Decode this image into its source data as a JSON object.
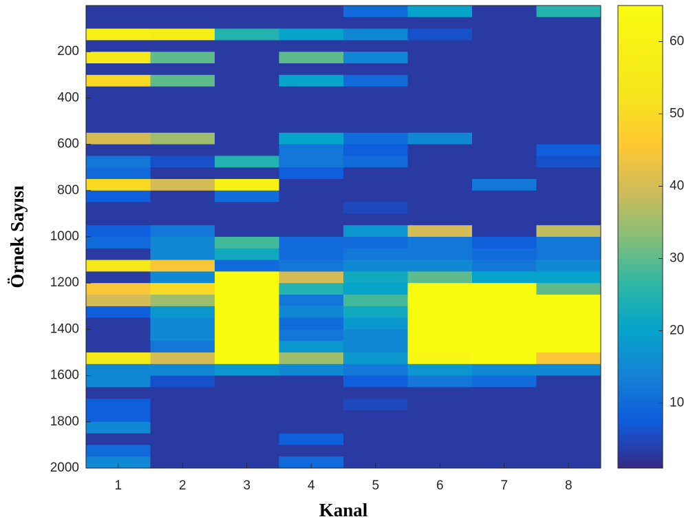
{
  "chart_data": {
    "type": "heatmap",
    "xlabel": "Kanal",
    "ylabel": "Örnek Sayısı",
    "categories": [
      "1",
      "2",
      "3",
      "4",
      "5",
      "6",
      "7",
      "8"
    ],
    "y_bins": [
      0,
      50,
      100,
      150,
      200,
      250,
      300,
      350,
      400,
      450,
      500,
      550,
      600,
      650,
      700,
      750,
      800,
      850,
      900,
      950,
      1000,
      1050,
      1100,
      1150,
      1200,
      1250,
      1300,
      1350,
      1400,
      1450,
      1500,
      1550,
      1600,
      1650,
      1700,
      1750,
      1800,
      1850,
      1900,
      1950,
      2000
    ],
    "ylim": [
      0,
      2000
    ],
    "y_reversed": true,
    "yticks": [
      200,
      400,
      600,
      800,
      1000,
      1200,
      1400,
      1600,
      1800,
      2000
    ],
    "colormap": "parula",
    "clim": [
      1,
      65
    ],
    "cticks": [
      10,
      20,
      30,
      40,
      50,
      60
    ],
    "values": [
      [
        3,
        3,
        60,
        3,
        55,
        3,
        50,
        3,
        3,
        3,
        3,
        40,
        3,
        12,
        10,
        50,
        8,
        3,
        3,
        8,
        10,
        3,
        55,
        3,
        45,
        40,
        8,
        3,
        3,
        3,
        55,
        15,
        15,
        3,
        8,
        8,
        15,
        3,
        10,
        15
      ],
      [
        3,
        3,
        58,
        3,
        30,
        3,
        30,
        3,
        3,
        3,
        3,
        35,
        3,
        6,
        3,
        40,
        3,
        3,
        3,
        12,
        15,
        15,
        45,
        15,
        50,
        35,
        18,
        15,
        15,
        12,
        40,
        15,
        6,
        3,
        3,
        3,
        3,
        3,
        3,
        3
      ],
      [
        3,
        3,
        25,
        3,
        3,
        3,
        3,
        3,
        3,
        3,
        3,
        3,
        3,
        25,
        3,
        60,
        10,
        3,
        3,
        3,
        28,
        22,
        10,
        65,
        65,
        65,
        65,
        65,
        65,
        65,
        65,
        18,
        3,
        3,
        3,
        3,
        3,
        3,
        3,
        3
      ],
      [
        3,
        3,
        20,
        3,
        30,
        3,
        20,
        3,
        3,
        3,
        3,
        20,
        12,
        12,
        8,
        3,
        3,
        3,
        3,
        3,
        10,
        10,
        12,
        40,
        25,
        12,
        15,
        10,
        12,
        18,
        35,
        15,
        3,
        3,
        3,
        3,
        3,
        8,
        3,
        10
      ],
      [
        10,
        3,
        15,
        3,
        15,
        3,
        10,
        3,
        3,
        3,
        3,
        10,
        8,
        10,
        3,
        3,
        3,
        5,
        3,
        18,
        10,
        12,
        15,
        22,
        20,
        28,
        22,
        18,
        15,
        15,
        18,
        12,
        8,
        3,
        5,
        3,
        3,
        3,
        3,
        3
      ],
      [
        20,
        3,
        6,
        3,
        3,
        3,
        3,
        3,
        3,
        3,
        3,
        15,
        3,
        3,
        3,
        3,
        3,
        3,
        3,
        40,
        12,
        12,
        15,
        30,
        65,
        65,
        65,
        65,
        65,
        65,
        62,
        18,
        12,
        3,
        3,
        3,
        3,
        3,
        3,
        3
      ],
      [
        3,
        3,
        3,
        3,
        3,
        3,
        3,
        3,
        3,
        3,
        3,
        3,
        3,
        3,
        3,
        12,
        3,
        3,
        3,
        3,
        8,
        10,
        12,
        20,
        65,
        65,
        65,
        65,
        65,
        65,
        65,
        15,
        10,
        3,
        3,
        3,
        3,
        3,
        3,
        3
      ],
      [
        25,
        3,
        3,
        3,
        3,
        3,
        3,
        3,
        3,
        3,
        3,
        3,
        8,
        6,
        3,
        3,
        3,
        3,
        3,
        38,
        12,
        12,
        15,
        20,
        30,
        65,
        65,
        65,
        65,
        65,
        45,
        15,
        3,
        3,
        3,
        3,
        3,
        3,
        3,
        3
      ]
    ]
  }
}
